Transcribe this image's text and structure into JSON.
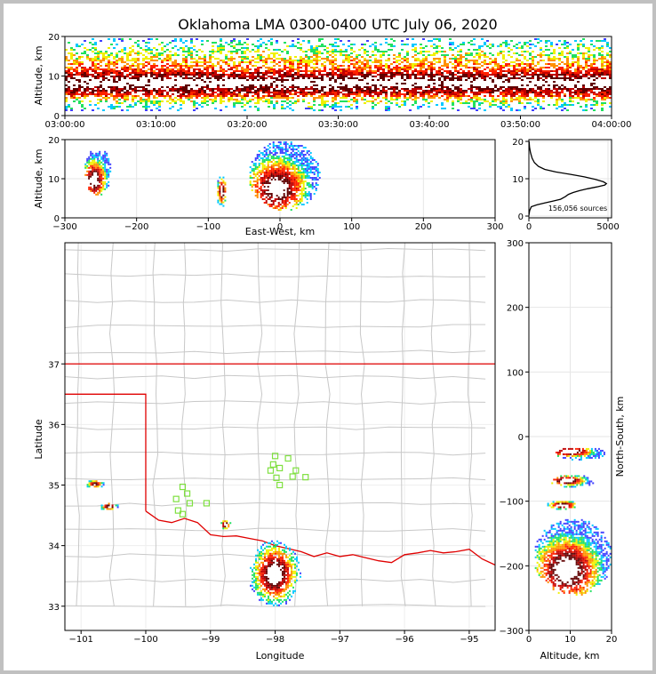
{
  "title": "Oklahoma LMA 0300-0400 UTC July 06, 2020",
  "chart_data": [
    {
      "type": "heatmap",
      "panel": "altitude-time",
      "xlabel": "",
      "ylabel": "Altitude, km",
      "x_ticks": [
        "03:00:00",
        "03:10:00",
        "03:20:00",
        "03:30:00",
        "03:40:00",
        "03:50:00",
        "04:00:00"
      ],
      "xlim": [
        "03:00:00",
        "04:00:00"
      ],
      "ylim": [
        0,
        20
      ],
      "y_ticks": [
        0,
        10,
        20
      ],
      "altitude_band_km": {
        "core_low": 5,
        "core_high": 12,
        "sparse_top": 20
      }
    },
    {
      "type": "heatmap",
      "panel": "altitude-east-west",
      "xlabel": "East-West, km",
      "ylabel": "Altitude, km",
      "xlim": [
        -300,
        300
      ],
      "ylim": [
        0,
        20
      ],
      "x_ticks": [
        -300,
        -200,
        -100,
        0,
        100,
        200,
        300
      ],
      "y_ticks": [
        0,
        10,
        20
      ],
      "clusters": [
        {
          "x_km": [
            -275,
            -235
          ],
          "alt_km": [
            6,
            18
          ],
          "peak_km": [
            -260,
            10
          ]
        },
        {
          "x_km": [
            -90,
            -75
          ],
          "alt_km": [
            3,
            11
          ],
          "peak_km": [
            -82,
            7
          ]
        },
        {
          "x_km": [
            -45,
            55
          ],
          "alt_km": [
            2,
            20
          ],
          "peak_km": [
            -5,
            8
          ]
        }
      ]
    },
    {
      "type": "line",
      "panel": "altitude-histogram",
      "xlim": [
        0,
        5000
      ],
      "ylim": [
        0,
        20
      ],
      "x_ticks": [
        0,
        5000
      ],
      "y_ticks": [
        0,
        10,
        20
      ],
      "annotation": "156,056 sources",
      "points": [
        [
          0,
          0.2
        ],
        [
          50,
          1.5
        ],
        [
          150,
          2.5
        ],
        [
          500,
          3.0
        ],
        [
          1000,
          3.5
        ],
        [
          1500,
          4.0
        ],
        [
          2000,
          4.5
        ],
        [
          2300,
          5.2
        ],
        [
          2500,
          5.8
        ],
        [
          2800,
          6.3
        ],
        [
          3200,
          6.8
        ],
        [
          3700,
          7.3
        ],
        [
          4300,
          7.8
        ],
        [
          4800,
          8.3
        ],
        [
          4900,
          8.7
        ],
        [
          4700,
          9.2
        ],
        [
          4200,
          9.8
        ],
        [
          3500,
          10.5
        ],
        [
          2600,
          11.2
        ],
        [
          1700,
          11.8
        ],
        [
          1000,
          12.5
        ],
        [
          600,
          13.3
        ],
        [
          350,
          14.3
        ],
        [
          200,
          15.5
        ],
        [
          100,
          17.0
        ],
        [
          40,
          18.5
        ],
        [
          10,
          20.0
        ]
      ]
    },
    {
      "type": "scatter",
      "panel": "plan-view",
      "xlabel": "Longitude",
      "ylabel": "Latitude",
      "xlim": [
        -101.25,
        -94.6
      ],
      "ylim": [
        32.6,
        39.0
      ],
      "x_ticks": [
        -101,
        -100,
        -99,
        -98,
        -97,
        -96,
        -95
      ],
      "y_ticks": [
        33,
        34,
        35,
        36,
        37
      ],
      "stations": [
        {
          "lon": -98.0,
          "lat": 35.48
        },
        {
          "lon": -97.8,
          "lat": 35.44
        },
        {
          "lon": -98.03,
          "lat": 35.34
        },
        {
          "lon": -97.93,
          "lat": 35.28
        },
        {
          "lon": -98.07,
          "lat": 35.24
        },
        {
          "lon": -97.68,
          "lat": 35.24
        },
        {
          "lon": -97.73,
          "lat": 35.14
        },
        {
          "lon": -97.53,
          "lat": 35.13
        },
        {
          "lon": -97.98,
          "lat": 35.12
        },
        {
          "lon": -97.93,
          "lat": 35.0
        },
        {
          "lon": -99.43,
          "lat": 34.97
        },
        {
          "lon": -99.36,
          "lat": 34.86
        },
        {
          "lon": -99.53,
          "lat": 34.77
        },
        {
          "lon": -99.32,
          "lat": 34.7
        },
        {
          "lon": -99.06,
          "lat": 34.7
        },
        {
          "lon": -99.5,
          "lat": 34.58
        },
        {
          "lon": -99.43,
          "lat": 34.52
        }
      ],
      "clusters": [
        {
          "lon": -100.8,
          "lat": 35.03
        },
        {
          "lon": -100.58,
          "lat": 34.66
        },
        {
          "lon": -98.78,
          "lat": 34.36
        },
        {
          "lon": -98.02,
          "lat": 33.55
        }
      ]
    },
    {
      "type": "heatmap",
      "panel": "north-south-altitude",
      "xlabel": "Altitude, km",
      "ylabel": "North-South, km",
      "xlim": [
        0,
        20
      ],
      "ylim": [
        -300,
        300
      ],
      "x_ticks": [
        0,
        10,
        20
      ],
      "y_ticks": [
        -300,
        -200,
        -100,
        0,
        100,
        200,
        300
      ],
      "clusters": [
        {
          "alt_km": [
            6,
            19
          ],
          "ns_km": [
            -35,
            -15
          ],
          "peak": [
            10,
            -22
          ]
        },
        {
          "alt_km": [
            5,
            16
          ],
          "ns_km": [
            -77,
            -57
          ],
          "peak": [
            9,
            -67
          ]
        },
        {
          "alt_km": [
            4,
            12
          ],
          "ns_km": [
            -112,
            -97
          ],
          "peak": [
            8,
            -105
          ]
        },
        {
          "alt_km": [
            1,
            20
          ],
          "ns_km": [
            -245,
            -125
          ],
          "peak": [
            9,
            -205
          ]
        }
      ]
    }
  ],
  "colors": {
    "state_border": "#e00000",
    "county_lines": "#c8c8c8",
    "station": "#7fe040",
    "hist_line": "#000000",
    "density_scale": [
      "#4040ff",
      "#00c8ff",
      "#20e060",
      "#f0f000",
      "#ff9000",
      "#ff2000",
      "#c00000",
      "#600000",
      "#ffffff"
    ]
  }
}
